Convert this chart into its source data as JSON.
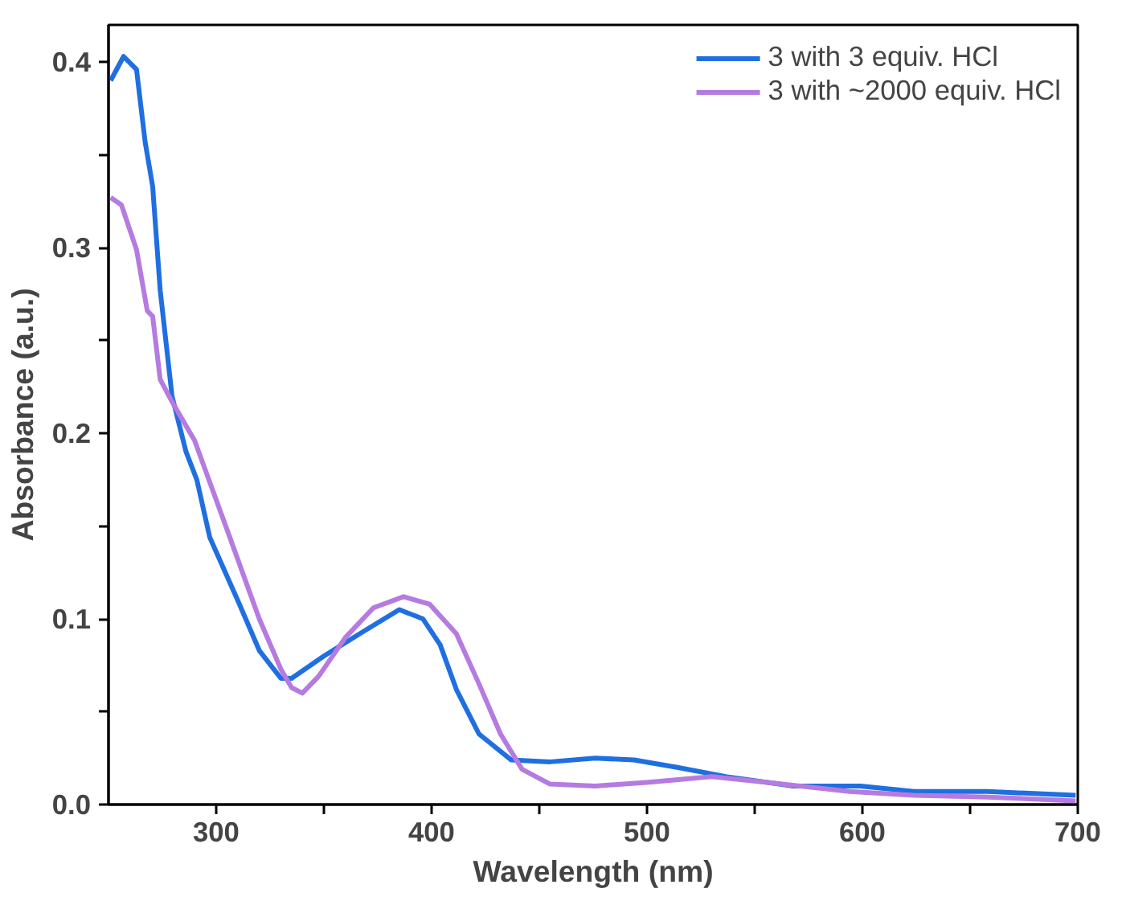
{
  "chart_data": {
    "type": "line",
    "xlabel": "Wavelength (nm)",
    "ylabel": "Absorbance (a.u.)",
    "xlim": [
      250,
      700
    ],
    "ylim": [
      0,
      0.42
    ],
    "xticks": [
      300,
      {
        "value": 350,
        "label": null
      },
      400,
      {
        "value": 450,
        "label": null
      },
      500,
      {
        "value": 550,
        "label": null
      },
      600,
      {
        "value": 650,
        "label": null
      },
      700
    ],
    "yticks": [
      {
        "value": 0,
        "label": "0.0"
      },
      {
        "value": 0.05,
        "label": null
      },
      0.1,
      {
        "value": 0.15,
        "label": null
      },
      0.2,
      {
        "value": 0.25,
        "label": null
      },
      0.3,
      {
        "value": 0.35,
        "label": null
      },
      0.4
    ],
    "legend": "top right",
    "grid": false,
    "marker": "none",
    "line_style": "solid",
    "series": [
      {
        "name": "3 with 3 equiv. HCl",
        "color": "#1f6fe0",
        "x": [
          251,
          257,
          263,
          267,
          270.5,
          274,
          279.5,
          286,
          291,
          297,
          310,
          320,
          330,
          335,
          350,
          368,
          385,
          396,
          404,
          411.5,
          422,
          437,
          455,
          476,
          494,
          514,
          537,
          568,
          599,
          624,
          658,
          699
        ],
        "values": [
          0.39,
          0.403,
          0.396,
          0.357,
          0.333,
          0.277,
          0.22,
          0.19,
          0.175,
          0.144,
          0.11,
          0.083,
          0.068,
          0.068,
          0.08,
          0.093,
          0.105,
          0.1,
          0.086,
          0.062,
          0.038,
          0.024,
          0.023,
          0.025,
          0.024,
          0.02,
          0.015,
          0.01,
          0.01,
          0.007,
          0.007,
          0.005
        ]
      },
      {
        "name": "3 with ~2000 equiv. HCl",
        "color": "#b57be0",
        "x": [
          251,
          256,
          263,
          268,
          270.5,
          274,
          279.5,
          290,
          306,
          320,
          330,
          335,
          340,
          347.5,
          360,
          373,
          387,
          399,
          411.5,
          422,
          432,
          442,
          455,
          476,
          501,
          530,
          555,
          594,
          624,
          658,
          699
        ],
        "values": [
          0.327,
          0.323,
          0.299,
          0.266,
          0.263,
          0.229,
          0.217,
          0.196,
          0.145,
          0.1,
          0.073,
          0.063,
          0.06,
          0.069,
          0.09,
          0.106,
          0.112,
          0.108,
          0.092,
          0.065,
          0.038,
          0.019,
          0.011,
          0.01,
          0.012,
          0.015,
          0.012,
          0.007,
          0.005,
          0.004,
          0.002
        ]
      }
    ]
  }
}
